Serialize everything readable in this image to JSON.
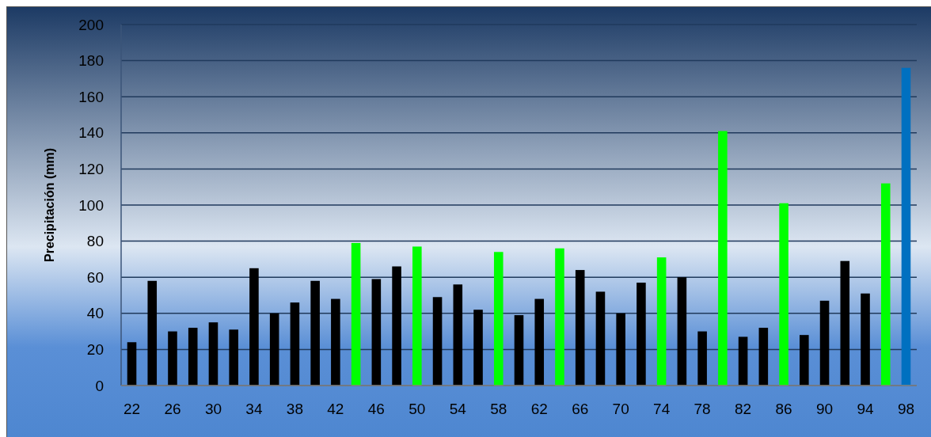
{
  "chart_data": {
    "type": "bar",
    "ylabel": "Precipitación (mm)",
    "categories": [
      "22",
      null,
      "26",
      null,
      "30",
      null,
      "34",
      null,
      "38",
      null,
      "42",
      null,
      "46",
      null,
      "50",
      null,
      "54",
      null,
      "58",
      null,
      "62",
      null,
      "66",
      null,
      "70",
      null,
      "74",
      null,
      "78",
      null,
      "82",
      null,
      "86",
      null,
      "90",
      null,
      "94",
      null,
      "98"
    ],
    "values": [
      24,
      58,
      30,
      32,
      35,
      31,
      65,
      40,
      46,
      58,
      48,
      79,
      59,
      66,
      77,
      49,
      56,
      42,
      74,
      39,
      48,
      76,
      64,
      52,
      40,
      57,
      71,
      60,
      30,
      141,
      27,
      32,
      101,
      28,
      47,
      69,
      51,
      112,
      176
    ],
    "colors": [
      "#000000",
      "#000000",
      "#000000",
      "#000000",
      "#000000",
      "#000000",
      "#000000",
      "#000000",
      "#000000",
      "#000000",
      "#000000",
      "#00ff00",
      "#000000",
      "#000000",
      "#00ff00",
      "#000000",
      "#000000",
      "#000000",
      "#00ff00",
      "#000000",
      "#000000",
      "#00ff00",
      "#000000",
      "#000000",
      "#000000",
      "#000000",
      "#00ff00",
      "#000000",
      "#000000",
      "#00ff00",
      "#000000",
      "#000000",
      "#00ff00",
      "#000000",
      "#000000",
      "#000000",
      "#000000",
      "#00ff00",
      "#0070c0"
    ],
    "ylim": [
      0,
      200
    ],
    "yticks": [
      0,
      20,
      40,
      60,
      80,
      100,
      120,
      140,
      160,
      180,
      200
    ],
    "grid": "y"
  }
}
